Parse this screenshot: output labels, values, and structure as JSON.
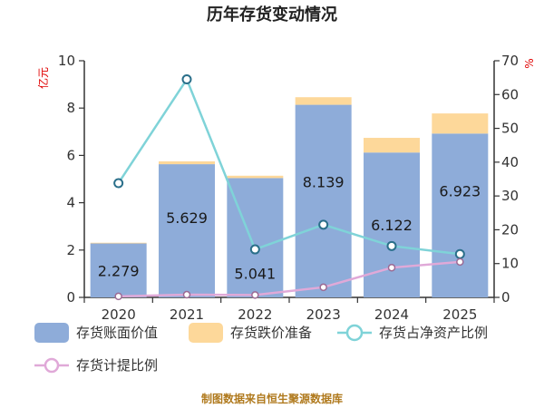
{
  "chart_data": {
    "type": "bar",
    "title": "历年存货变动情况",
    "categories": [
      "2020",
      "2021",
      "2022",
      "2023",
      "2024",
      "2025"
    ],
    "y_left": {
      "label": "亿元",
      "ticks": [
        "0",
        "2",
        "4",
        "6",
        "8",
        "10"
      ],
      "range": [
        0,
        10
      ]
    },
    "y_right": {
      "label": "%",
      "ticks": [
        "0",
        "10",
        "20",
        "30",
        "40",
        "50",
        "60",
        "70"
      ],
      "range": [
        0,
        70
      ]
    },
    "series": [
      {
        "name": "存货账面价值",
        "kind": "bar",
        "axis": "left",
        "color": "#8eacd9",
        "values": [
          2.279,
          5.629,
          5.041,
          8.139,
          6.122,
          6.923
        ],
        "labels": [
          "2.279",
          "5.629",
          "5.041",
          "8.139",
          "6.122",
          "6.923"
        ]
      },
      {
        "name": "存货跌价准备",
        "kind": "bar",
        "axis": "left",
        "stacked": true,
        "color": "#fdd89a",
        "values": [
          0.03,
          0.12,
          0.1,
          0.32,
          0.62,
          0.85
        ]
      },
      {
        "name": "存货占净资产比例",
        "kind": "line",
        "axis": "right",
        "color": "#7fd3d8",
        "values": [
          33.8,
          64.5,
          14.2,
          21.5,
          15.2,
          12.8
        ]
      },
      {
        "name": "存货计提比例",
        "kind": "line",
        "axis": "right",
        "color": "#e0a9d8",
        "values": [
          0.3,
          0.8,
          0.7,
          3.0,
          8.8,
          10.5
        ]
      }
    ],
    "legend_position": "bottom",
    "grid": false
  },
  "source_note": "制图数据来自恒生聚源数据库"
}
